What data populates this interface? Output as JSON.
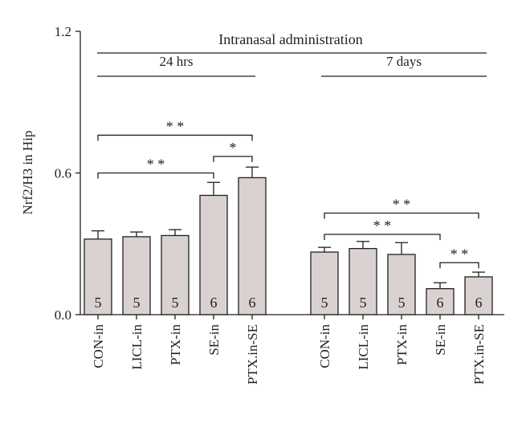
{
  "chart_data": {
    "type": "bar",
    "title": "Intranasal administration",
    "ylabel": "Nrf2/H3 in Hip",
    "xlabel": "",
    "ylim": [
      0,
      1.2
    ],
    "yticks": [
      "0.0",
      "0.6",
      "1.2"
    ],
    "colors": {
      "bar": "#d9d2d0",
      "ink": "#231f20"
    },
    "groups": [
      {
        "label": "24 hrs",
        "categories": [
          "CON-in",
          "LICL-in",
          "PTX-in",
          "SE-in",
          "PTX.in-SE"
        ],
        "values": [
          0.32,
          0.33,
          0.335,
          0.505,
          0.58
        ],
        "errors": [
          0.035,
          0.02,
          0.025,
          0.055,
          0.045
        ],
        "n": [
          "5",
          "5",
          "5",
          "6",
          "6"
        ],
        "significance": [
          {
            "from": 0,
            "to": 4,
            "label": "* *",
            "y": 0.76
          },
          {
            "from": 0,
            "to": 3,
            "label": "* *",
            "y": 0.6
          },
          {
            "from": 3,
            "to": 4,
            "label": "*",
            "y": 0.67
          }
        ]
      },
      {
        "label": "7 days",
        "categories": [
          "CON-in",
          "LICL-in",
          "PTX-in",
          "SE-in",
          "PTX.in-SE"
        ],
        "values": [
          0.265,
          0.28,
          0.255,
          0.11,
          0.16
        ],
        "errors": [
          0.02,
          0.03,
          0.05,
          0.025,
          0.02
        ],
        "n": [
          "5",
          "5",
          "5",
          "6",
          "6"
        ],
        "significance": [
          {
            "from": 0,
            "to": 4,
            "label": "* *",
            "y": 0.43
          },
          {
            "from": 0,
            "to": 3,
            "label": "* *",
            "y": 0.34
          },
          {
            "from": 3,
            "to": 4,
            "label": "* *",
            "y": 0.22
          }
        ]
      }
    ]
  }
}
